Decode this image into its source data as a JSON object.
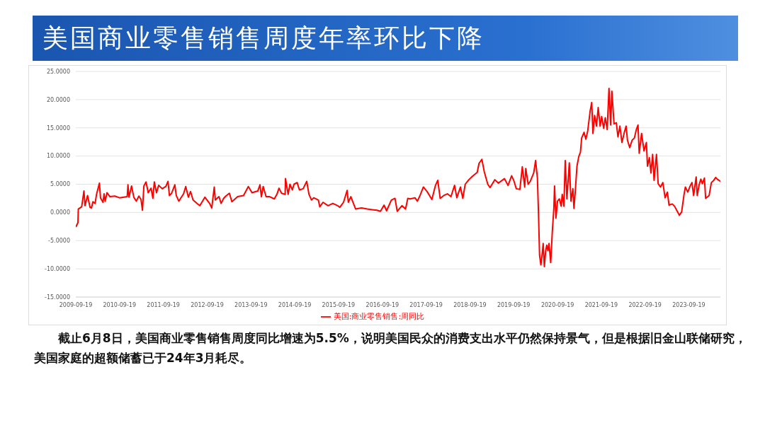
{
  "chart_data": {
    "type": "line",
    "title": "美国商业零售销售周度年率环比下降",
    "annotations": [
      "截止6月8日，美国商业零售销售周度同比增速为5.5%，说明美国民众的消费支出水平仍然保持景气，但是根据旧金山联储研究，美国家庭的超额储蓄已于24年3月耗尽。"
    ],
    "x": [
      "2009-09-19",
      "2009-10-07",
      "2009-10-10",
      "2009-11-07",
      "2009-11-26",
      "2009-12-05",
      "2009-12-26",
      "2010-01-16",
      "2010-01-28",
      "2010-02-09",
      "2010-02-27",
      "2010-03-11",
      "2010-04-04",
      "2010-04-13",
      "2010-05-04",
      "2010-05-13",
      "2010-05-22",
      "2010-06-06",
      "2010-07-01",
      "2010-08-10",
      "2010-09-19",
      "2010-11-22",
      "2010-11-28",
      "2010-12-07",
      "2010-12-28",
      "2011-01-16",
      "2011-02-06",
      "2011-02-27",
      "2011-03-17",
      "2011-03-29",
      "2011-04-10",
      "2011-04-28",
      "2011-05-16",
      "2011-06-09",
      "2011-06-24",
      "2011-07-06",
      "2011-07-24",
      "2011-08-11",
      "2011-09-10",
      "2011-10-10",
      "2011-10-28",
      "2011-11-09",
      "2011-11-27",
      "2011-12-24",
      "2012-01-05",
      "2012-01-26",
      "2012-03-06",
      "2012-03-24",
      "2012-04-15",
      "2012-05-03",
      "2012-05-24",
      "2012-07-02",
      "2012-07-20",
      "2012-08-31",
      "2012-10-09",
      "2012-10-27",
      "2012-11-17",
      "2012-11-26",
      "2012-12-26",
      "2013-01-13",
      "2013-02-03",
      "2013-02-21",
      "2013-03-23",
      "2013-04-13",
      "2013-05-31",
      "2013-07-19",
      "2013-08-28",
      "2013-09-28",
      "2013-11-15",
      "2013-12-03",
      "2013-12-15",
      "2013-12-30",
      "2014-01-23",
      "2014-02-22",
      "2014-04-02",
      "2014-04-23",
      "2014-05-11",
      "2014-06-01",
      "2014-07-01",
      "2014-07-04",
      "2014-07-26",
      "2014-08-10",
      "2014-08-30",
      "2014-09-13",
      "2014-10-09",
      "2014-10-28",
      "2014-11-28",
      "2014-12-28",
      "2015-01-16",
      "2015-02-06",
      "2015-02-25",
      "2015-04-04",
      "2015-04-16",
      "2015-05-13",
      "2015-06-24",
      "2015-08-03",
      "2015-09-12",
      "2015-09-30",
      "2015-10-31",
      "2015-11-30",
      "2015-12-10",
      "2015-12-31",
      "2016-02-09",
      "2016-03-28",
      "2016-05-16",
      "2016-06-25",
      "2016-08-04",
      "2016-09-03",
      "2016-10-03",
      "2016-10-24",
      "2016-12-03",
      "2017-01-02",
      "2017-01-21",
      "2017-03-01",
      "2017-03-31",
      "2017-04-19",
      "2017-05-09",
      "2017-06-18",
      "2017-07-08",
      "2017-07-28",
      "2017-08-27",
      "2017-09-27",
      "2017-11-06",
      "2017-12-06",
      "2017-12-25",
      "2018-01-14",
      "2018-02-13",
      "2018-03-15",
      "2018-04-14",
      "2018-05-14",
      "2018-06-02",
      "2018-07-02",
      "2018-07-22",
      "2018-08-11",
      "2018-09-10",
      "2018-10-10",
      "2018-11-19",
      "2018-12-04",
      "2018-12-28",
      "2019-01-17",
      "2019-02-15",
      "2019-03-06",
      "2019-04-15",
      "2019-05-15",
      "2019-07-04",
      "2019-08-03",
      "2019-09-02",
      "2019-09-21",
      "2019-10-11",
      "2019-11-10",
      "2019-11-30",
      "2019-12-20",
      "2019-12-29",
      "2020-01-18",
      "2020-02-04",
      "2020-03-04",
      "2020-03-20",
      "2020-04-04",
      "2020-04-13",
      "2020-04-22",
      "2020-05-03",
      "2020-05-13",
      "2020-05-22",
      "2020-06-01",
      "2020-06-12",
      "2020-06-21",
      "2020-07-01",
      "2020-07-10",
      "2020-07-24",
      "2020-08-06",
      "2020-08-19",
      "2020-08-25",
      "2020-09-05",
      "2020-09-19",
      "2020-10-04",
      "2020-10-19",
      "2020-10-28",
      "2020-11-11",
      "2020-11-22",
      "2020-12-06",
      "2020-12-26",
      "2021-01-09",
      "2021-01-25",
      "2021-02-03",
      "2021-02-14",
      "2021-02-28",
      "2021-03-15",
      "2021-03-29",
      "2021-04-08",
      "2021-04-28",
      "2021-05-13",
      "2021-05-29",
      "2021-06-18",
      "2021-07-01",
      "2021-07-11",
      "2021-07-25",
      "2021-08-10",
      "2021-08-24",
      "2021-09-09",
      "2021-09-22",
      "2021-10-09",
      "2021-10-22",
      "2021-11-07",
      "2021-11-22",
      "2021-12-06",
      "2021-12-16",
      "2022-01-03",
      "2022-01-22",
      "2022-02-05",
      "2022-02-21",
      "2022-03-10",
      "2022-03-30",
      "2022-04-14",
      "2022-04-25",
      "2022-05-14",
      "2022-06-03",
      "2022-06-22",
      "2022-07-08",
      "2022-07-22",
      "2022-08-01",
      "2022-08-21",
      "2022-09-10",
      "2022-09-30",
      "2022-10-09",
      "2022-10-25",
      "2022-11-07",
      "2022-11-21",
      "2022-12-03",
      "2022-12-23",
      "2023-01-06",
      "2023-01-26",
      "2023-02-14",
      "2023-03-05",
      "2023-03-24",
      "2023-04-07",
      "2023-05-04",
      "2023-05-23",
      "2023-06-12",
      "2023-07-02",
      "2023-07-21",
      "2023-08-10",
      "2023-08-21",
      "2023-09-10",
      "2023-09-30",
      "2023-10-15",
      "2023-10-29",
      "2023-11-19",
      "2023-11-28",
      "2023-12-14",
      "2023-12-28",
      "2024-01-10",
      "2024-01-27",
      "2024-02-06",
      "2024-03-06",
      "2024-03-25",
      "2024-04-14",
      "2024-04-30",
      "2024-05-13",
      "2024-05-27",
      "2024-06-08"
    ],
    "series": [
      {
        "name": "美国:商业零售销售:周同比",
        "color": "#ff0000",
        "values": [
          -2.6,
          -1.8,
          0.6,
          1.0,
          3.8,
          1.2,
          3.0,
          0.9,
          0.8,
          1.9,
          1.6,
          3.2,
          5.2,
          2.6,
          1.8,
          3.3,
          2.0,
          3.5,
          2.8,
          2.9,
          2.6,
          2.8,
          4.9,
          2.7,
          4.7,
          2.7,
          2.0,
          2.9,
          2.3,
          0.4,
          4.7,
          5.4,
          3.5,
          4.3,
          2.5,
          5.4,
          3.5,
          4.8,
          4.2,
          4.6,
          5.5,
          3.0,
          3.4,
          4.9,
          3.0,
          2.0,
          3.3,
          4.6,
          2.7,
          3.7,
          2.2,
          1.5,
          1.2,
          2.7,
          1.6,
          0.8,
          4.5,
          2.2,
          2.8,
          1.6,
          2.5,
          2.9,
          3.4,
          1.9,
          2.8,
          3.0,
          4.6,
          3.5,
          3.8,
          4.9,
          2.8,
          4.6,
          2.8,
          2.8,
          2.4,
          3.2,
          4.3,
          3.4,
          3.2,
          6.0,
          3.2,
          5.0,
          4.0,
          5.0,
          5.3,
          4.0,
          4.2,
          5.5,
          3.2,
          2.2,
          2.6,
          2.2,
          1.0,
          1.8,
          1.2,
          1.6,
          1.2,
          0.9,
          1.8,
          3.9,
          1.8,
          2.8,
          0.6,
          0.8,
          0.6,
          0.5,
          0.4,
          0.2,
          1.3,
          0.3,
          2.2,
          2.5,
          0.2,
          1.2,
          0.6,
          2.5,
          2.4,
          2.6,
          2.0,
          2.9,
          4.5,
          3.7,
          2.3,
          4.8,
          5.7,
          2.5,
          3.0,
          3.3,
          2.8,
          4.8,
          2.6,
          4.5,
          2.5,
          5.0,
          5.8,
          6.4,
          7.1,
          8.7,
          9.4,
          7.2,
          5.0,
          4.4,
          5.8,
          5.2,
          6.0,
          4.8,
          6.5,
          5.6,
          4.2,
          4.1,
          8.1,
          4.5,
          7.8,
          5.0,
          5.5,
          7.0,
          9.2,
          6.1,
          -0.1,
          -7.6,
          -9.3,
          -7.6,
          -5.5,
          -9.6,
          -6.8,
          -5.8,
          -6.8,
          -5.5,
          -8.9,
          -3.5,
          0.7,
          4.7,
          -1.0,
          2.0,
          2.4,
          1.1,
          3.2,
          1.1,
          9.2,
          2.4,
          8.8,
          2.0,
          4.2,
          0.7,
          3.8,
          8.2,
          9.9,
          10.7,
          13.2,
          14.2,
          13.0,
          14.5,
          18.0,
          19.5,
          14.0,
          17.2,
          15.3,
          18.6,
          15.3,
          17.0,
          14.9,
          16.8,
          14.7,
          22.0,
          15.5,
          21.5,
          15.7,
          15.9,
          13.4,
          15.3,
          12.4,
          14.2,
          15.3,
          12.8,
          11.5,
          12.8,
          13.2,
          14.7,
          15.5,
          10.5,
          14.0,
          10.9,
          12.4,
          8.2,
          9.7,
          7.0,
          10.3,
          5.7,
          10.3,
          5.1,
          4.5,
          5.3,
          2.6,
          3.6,
          1.3,
          1.5,
          1.1,
          0.3,
          -0.5,
          0.1,
          3.2,
          4.5,
          3.6,
          4.7,
          5.3,
          3.0,
          6.3,
          3.0,
          4.9,
          5.9,
          5.1,
          6.1,
          2.5,
          3.0,
          5.3,
          5.7,
          6.2,
          5.9,
          5.7,
          5.5
        ]
      }
    ],
    "xlim": [
      "2009-09-19",
      "2024-06-08"
    ],
    "xticks": [
      "2009-09-19",
      "2010-09-19",
      "2011-09-19",
      "2012-09-19",
      "2013-09-19",
      "2014-09-19",
      "2015-09-19",
      "2016-09-19",
      "2017-09-19",
      "2018-09-19",
      "2019-09-19",
      "2020-09-19",
      "2021-09-19",
      "2022-09-19",
      "2023-09-19"
    ],
    "ylim": [
      -15,
      25
    ],
    "yticks": [
      {
        "value": -15,
        "label": "-15.0000"
      },
      {
        "value": -10,
        "label": "-10.0000"
      },
      {
        "value": -5,
        "label": "-5.0000"
      },
      {
        "value": 0,
        "label": "0.0000"
      },
      {
        "value": 5,
        "label": "5.0000"
      },
      {
        "value": 10,
        "label": "10.0000"
      },
      {
        "value": 15,
        "label": "15.0000"
      },
      {
        "value": 20,
        "label": "20.0000"
      },
      {
        "value": 25,
        "label": "25.0000"
      }
    ],
    "grid": "y",
    "legend": "bottom",
    "marker": "none",
    "line_style": "solid"
  }
}
